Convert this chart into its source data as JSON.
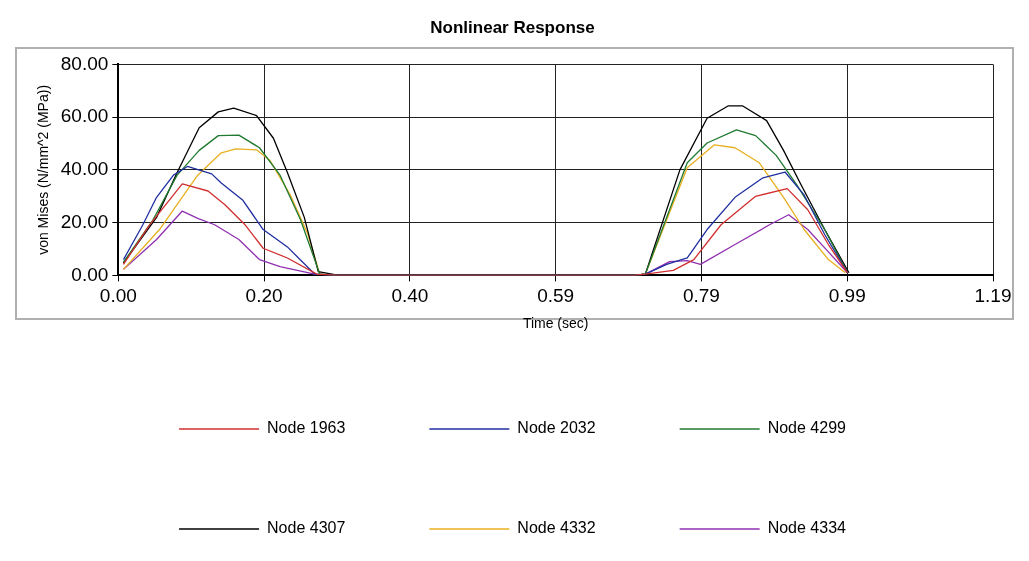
{
  "chart_data": {
    "type": "line",
    "title": "Nonlinear Response",
    "xlabel": "Time (sec)",
    "ylabel": "von Mises (N/mm^2 (MPa))",
    "xlim": [
      0,
      1.19
    ],
    "xticks": [
      {
        "value": 0,
        "label": "0.00"
      },
      {
        "value": 0.1983,
        "label": "0.20"
      },
      {
        "value": 0.3967,
        "label": "0.40"
      },
      {
        "value": 0.595,
        "label": "0.59"
      },
      {
        "value": 0.7933,
        "label": "0.79"
      },
      {
        "value": 0.9917,
        "label": "0.99"
      },
      {
        "value": 1.19,
        "label": "1.19"
      }
    ],
    "ylim": [
      0,
      80
    ],
    "yticks": [
      {
        "value": 0,
        "label": "0.00"
      },
      {
        "value": 20,
        "label": "20.00"
      },
      {
        "value": 40,
        "label": "40.00"
      },
      {
        "value": 60,
        "label": "60.00"
      },
      {
        "value": 80,
        "label": "80.00"
      }
    ],
    "grid": true,
    "legend": "bottom",
    "marker": "none",
    "line_style": "solid",
    "series": [
      {
        "name": "Node 1963",
        "color": "#d03030",
        "x": [
          0.007,
          0.042,
          0.087,
          0.122,
          0.145,
          0.173,
          0.197,
          0.23,
          0.27,
          0.3,
          0.7,
          0.717,
          0.755,
          0.783,
          0.82,
          0.867,
          0.91,
          0.938,
          0.966,
          0.992
        ],
        "values": [
          4.2,
          19,
          34.7,
          32,
          26.8,
          19,
          10.3,
          6.6,
          0.5,
          0,
          0,
          0.5,
          1.9,
          6,
          19.2,
          30,
          32.9,
          24.9,
          11.7,
          1
        ]
      },
      {
        "name": "Node 2032",
        "color": "#2030a0",
        "x": [
          0.007,
          0.033,
          0.052,
          0.075,
          0.094,
          0.127,
          0.14,
          0.169,
          0.197,
          0.23,
          0.267,
          0.3,
          0.7,
          0.717,
          0.746,
          0.774,
          0.801,
          0.839,
          0.877,
          0.907,
          0.933,
          0.961,
          0.992
        ],
        "values": [
          6,
          19,
          29.6,
          38,
          41.3,
          38.5,
          35,
          28.6,
          17.4,
          10.8,
          0.5,
          0,
          0,
          0.5,
          4.2,
          6.6,
          17.4,
          29.6,
          37,
          39.2,
          30.5,
          15.5,
          1
        ]
      },
      {
        "name": "Node 4299",
        "color": "#207a30",
        "x": [
          0.007,
          0.047,
          0.08,
          0.11,
          0.136,
          0.164,
          0.192,
          0.22,
          0.248,
          0.274,
          0.3,
          0.7,
          0.717,
          0.774,
          0.801,
          0.841,
          0.867,
          0.895,
          0.923,
          0.961,
          0.992
        ],
        "values": [
          5,
          21,
          38,
          47.4,
          53,
          53.2,
          48.4,
          38,
          21,
          0.5,
          0,
          0,
          0.5,
          42.7,
          50.2,
          55.2,
          53,
          45.5,
          34.3,
          17.4,
          1
        ]
      },
      {
        "name": "Node 4307",
        "color": "#000000",
        "x": [
          0.007,
          0.052,
          0.08,
          0.11,
          0.136,
          0.157,
          0.188,
          0.211,
          0.23,
          0.253,
          0.272,
          0.3,
          0.7,
          0.717,
          0.764,
          0.801,
          0.83,
          0.849,
          0.882,
          0.905,
          0.929,
          0.961,
          0.994
        ],
        "values": [
          4.7,
          22,
          39,
          56,
          62,
          63.4,
          60.6,
          52,
          39,
          22,
          1.4,
          0,
          0,
          0.5,
          40,
          59.6,
          64.3,
          64.3,
          58.7,
          47.4,
          34.3,
          17.4,
          1
        ]
      },
      {
        "name": "Node 4332",
        "color": "#e8b020",
        "x": [
          0.007,
          0.056,
          0.108,
          0.14,
          0.16,
          0.188,
          0.206,
          0.234,
          0.258,
          0.274,
          0.3,
          0.7,
          0.717,
          0.774,
          0.811,
          0.839,
          0.872,
          0.905,
          0.933,
          0.966,
          0.989
        ],
        "values": [
          2.3,
          17.4,
          38,
          46.5,
          48,
          47.6,
          43.7,
          30.5,
          15.5,
          0.5,
          0,
          0,
          0.5,
          40.8,
          49.5,
          48.4,
          42.7,
          29.6,
          17.4,
          6,
          1
        ]
      },
      {
        "name": "Node 4334",
        "color": "#9030b0",
        "x": [
          0.007,
          0.052,
          0.087,
          0.108,
          0.131,
          0.164,
          0.192,
          0.22,
          0.267,
          0.3,
          0.7,
          0.717,
          0.75,
          0.774,
          0.792,
          0.839,
          0.886,
          0.912,
          0.938,
          0.966,
          0.992
        ],
        "values": [
          2.3,
          13.6,
          24.4,
          21.6,
          19.2,
          13.6,
          6,
          3.3,
          0.5,
          0,
          0,
          0.5,
          5.2,
          5.6,
          4.2,
          11.7,
          19.2,
          23,
          17.4,
          8.9,
          1
        ]
      }
    ]
  }
}
